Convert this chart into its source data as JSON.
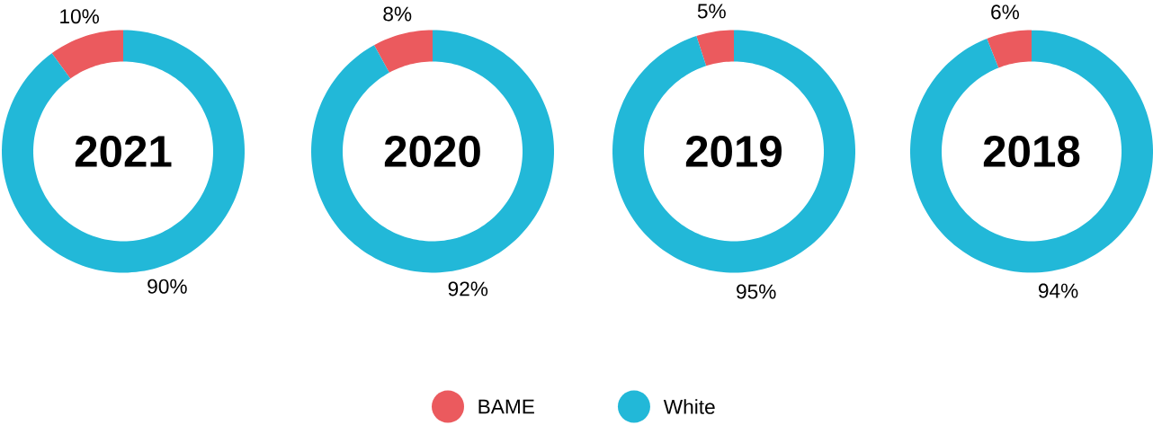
{
  "chart_data": [
    {
      "type": "donut",
      "title": "2021",
      "categories": [
        "BAME",
        "White"
      ],
      "values": [
        10,
        90
      ],
      "colors": [
        "#eb5a5e",
        "#22b8d8"
      ],
      "value_labels": [
        "10%",
        "90%"
      ],
      "legend": "bottom"
    },
    {
      "type": "donut",
      "title": "2020",
      "categories": [
        null,
        null
      ],
      "values": [
        8,
        92
      ],
      "colors": [
        "#eb5a5e",
        "#22b8d8"
      ],
      "value_labels": [
        "8%",
        "92%"
      ]
    },
    {
      "type": "donut",
      "title": "2019",
      "categories": [
        null,
        null
      ],
      "values": [
        5,
        95
      ],
      "colors": [
        "#eb5a5e",
        "#22b8d8"
      ],
      "value_labels": [
        "5%",
        "95%"
      ]
    },
    {
      "type": "donut",
      "title": "2018",
      "categories": [
        null,
        null
      ],
      "values": [
        6,
        94
      ],
      "colors": [
        "#eb5a5e",
        "#22b8d8"
      ],
      "value_labels": [
        "6%",
        "94%"
      ]
    }
  ]
}
